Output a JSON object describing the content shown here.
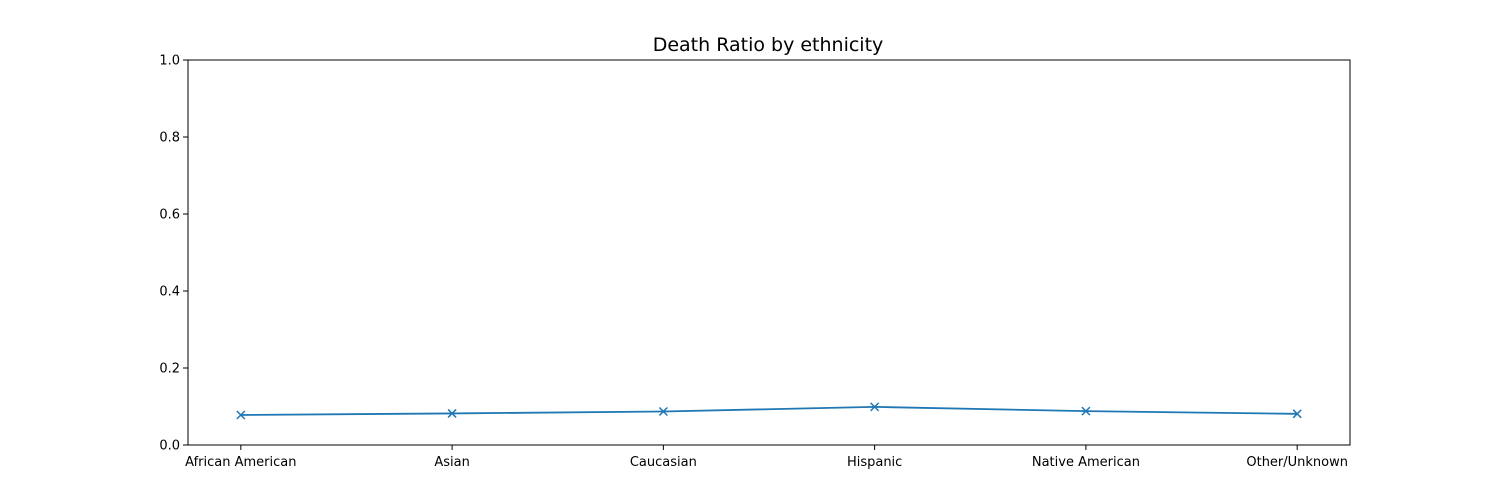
{
  "chart_data": {
    "type": "line",
    "title": "Death Ratio by ethnicity",
    "xlabel": "",
    "ylabel": "",
    "categories": [
      "African American",
      "Asian",
      "Caucasian",
      "Hispanic",
      "Native American",
      "Other/Unknown"
    ],
    "series": [
      {
        "values": [
          0.078,
          0.082,
          0.087,
          0.099,
          0.088,
          0.081
        ],
        "color": "#1f77b4",
        "marker": "x"
      }
    ],
    "ylim": [
      0,
      1
    ],
    "yticks": [
      0.0,
      0.2,
      0.4,
      0.6,
      0.8,
      1.0
    ],
    "ytick_labels": [
      "0.0",
      "0.2",
      "0.4",
      "0.6",
      "0.8",
      "1.0"
    ],
    "grid": false,
    "legend": "none"
  }
}
